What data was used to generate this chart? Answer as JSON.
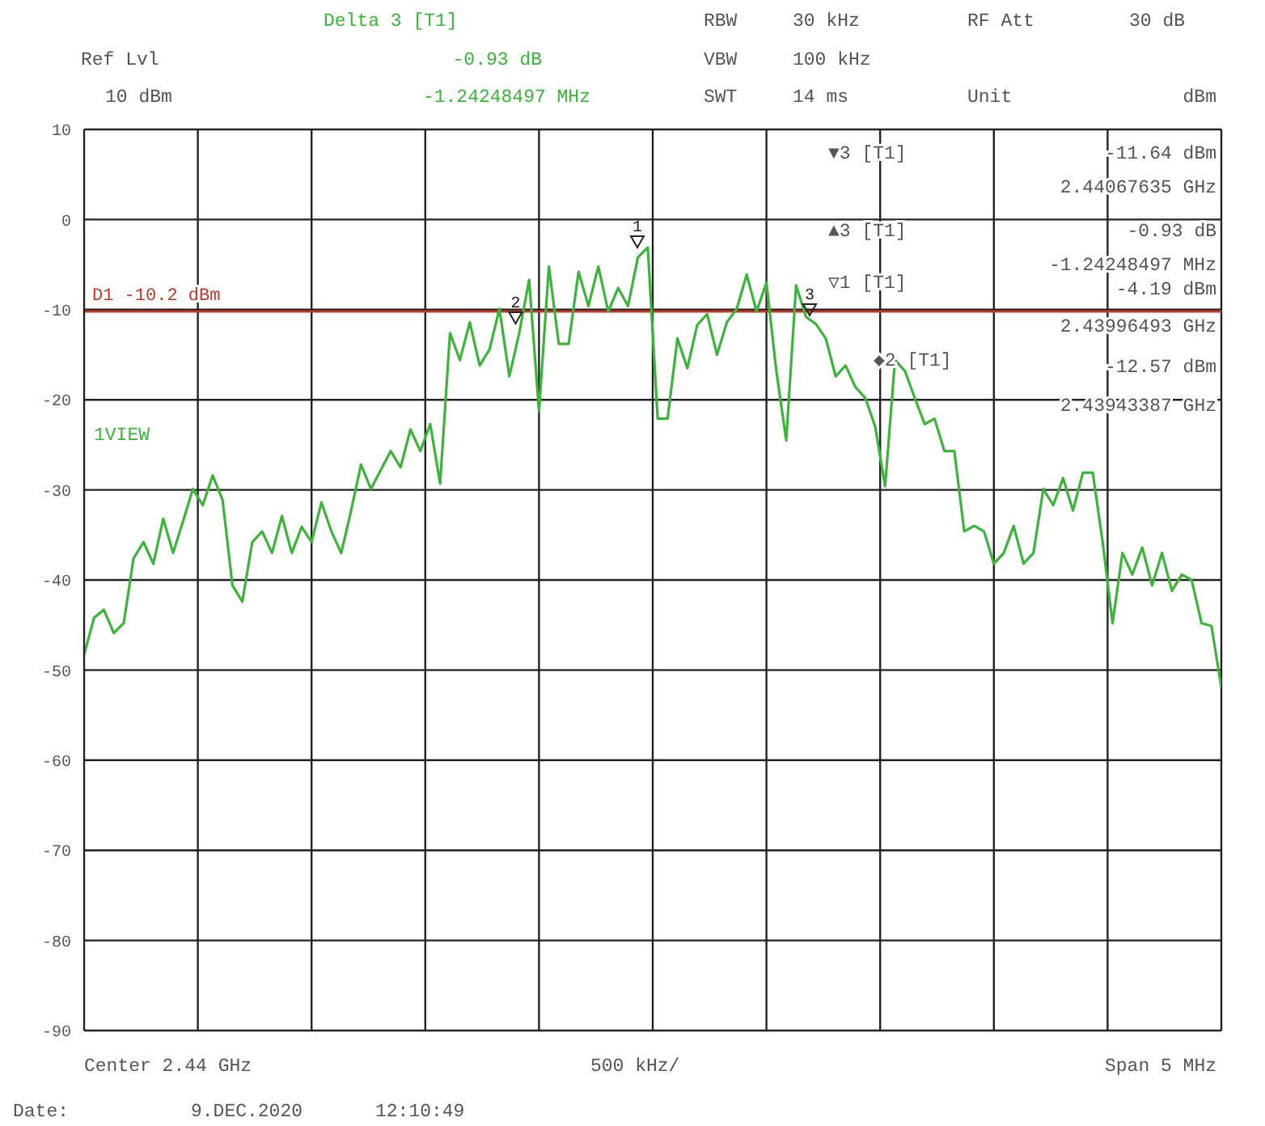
{
  "chart_data": {
    "type": "line",
    "categories": [
      null,
      null,
      null,
      null,
      null,
      null,
      null,
      null,
      null,
      null,
      null,
      null,
      null,
      null,
      null,
      null,
      null,
      null,
      null,
      null,
      null,
      null,
      null,
      null,
      null,
      null,
      null,
      null,
      null,
      null,
      null,
      null,
      null,
      null,
      null,
      null,
      null,
      null,
      null,
      null,
      null,
      null,
      null,
      null,
      null,
      null,
      null,
      null,
      null,
      null,
      null,
      null,
      null,
      null,
      null,
      null,
      null,
      null,
      null,
      null,
      null,
      null,
      null,
      null,
      null,
      null,
      null,
      null,
      null,
      null,
      null,
      null,
      null,
      null,
      null,
      null,
      null,
      null,
      null,
      null,
      null,
      null,
      null,
      null,
      null,
      null,
      null,
      null,
      null,
      null,
      null,
      null,
      null,
      null,
      null,
      null,
      null,
      null,
      null,
      null,
      null,
      null,
      null,
      null,
      null,
      null,
      null,
      null,
      null,
      null,
      null,
      null,
      null,
      null,
      null,
      null
    ],
    "series": [
      {
        "color": "#3cb43c",
        "values": [
          -48.3,
          -44.2,
          -43.3,
          -45.9,
          -44.8,
          -37.6,
          -35.8,
          -38.2,
          -33.2,
          -37,
          -33.5,
          -29.9,
          -31.7,
          -28.4,
          -31.1,
          -40.6,
          -42.4,
          -35.8,
          -34.6,
          -37,
          -32.9,
          -37,
          -34.1,
          -35.8,
          -31.4,
          -34.6,
          -37,
          -32.3,
          -27.2,
          -29.9,
          -27.8,
          -25.7,
          -27.5,
          -23.3,
          -25.7,
          -22.7,
          -29.3,
          -12.6,
          -15.6,
          -11.4,
          -16.2,
          -14.4,
          -9.9,
          -17.4,
          -12.6,
          -6.7,
          -21.3,
          -5.2,
          -13.8,
          -13.8,
          -5.8,
          -9.6,
          -5.2,
          -10.2,
          -7.6,
          -9.6,
          -4.2,
          -3.1,
          -22.1,
          -22.1,
          -13.2,
          -16.5,
          -11.7,
          -10.5,
          -15,
          -11.4,
          -9.9,
          -6.1,
          -10.2,
          -7,
          -16.8,
          -24.5,
          -7.3,
          -10.8,
          -11.6,
          -13.2,
          -17.4,
          -16.2,
          -18.6,
          -19.8,
          -23,
          -29.6,
          -15.6,
          -16.8,
          -19.8,
          -22.7,
          -22.1,
          -25.7,
          -25.7,
          -34.6,
          -34,
          -34.6,
          -38.2,
          -37,
          -34,
          -38.2,
          -37,
          -29.9,
          -31.7,
          -28.7,
          -32.3,
          -28.1,
          -28.1,
          -35.8,
          -44.8,
          -37,
          -39.4,
          -36.4,
          -40.6,
          -37,
          -41.2,
          -39.4,
          -40,
          -44.8,
          -45.1,
          -51.9
        ]
      }
    ],
    "ylim": [
      -90,
      10
    ],
    "yticks": [
      -90,
      -80,
      -70,
      -60,
      -50,
      -40,
      -30,
      -20,
      -10,
      0,
      10
    ],
    "tick_labels": "y",
    "grid": true,
    "ref_lines": [
      {
        "axis": "y",
        "value": -10.2,
        "label": "D1 -10.2 dBm",
        "color": "#c0392b"
      }
    ],
    "annotations": [
      "Delta 3 [T1]",
      "Ref Lvl",
      "-0.93 dB",
      "10 dBm",
      "-1.24248497 MHz",
      "RBW",
      "30 kHz",
      "RF Att",
      "30 dB",
      "VBW",
      "100 kHz",
      "SWT",
      "14 ms",
      "Unit",
      "dBm",
      "▼3 [T1]",
      "-11.64 dBm",
      "2.44067635 GHz",
      "▲3 [T1]",
      "-0.93 dB",
      "-1.24248497 MHz",
      "▽1 [T1]",
      "-4.19 dBm",
      "2.43996493 GHz",
      "◆2 [T1]",
      "-12.57 dBm",
      "2.43943387 GHz",
      "1VIEW",
      "Center 2.44 GHz",
      "500 kHz/",
      "Span 5 MHz",
      "Date:",
      "9.DEC.2020",
      "12:10:49",
      "1",
      "2",
      "3"
    ]
  }
}
